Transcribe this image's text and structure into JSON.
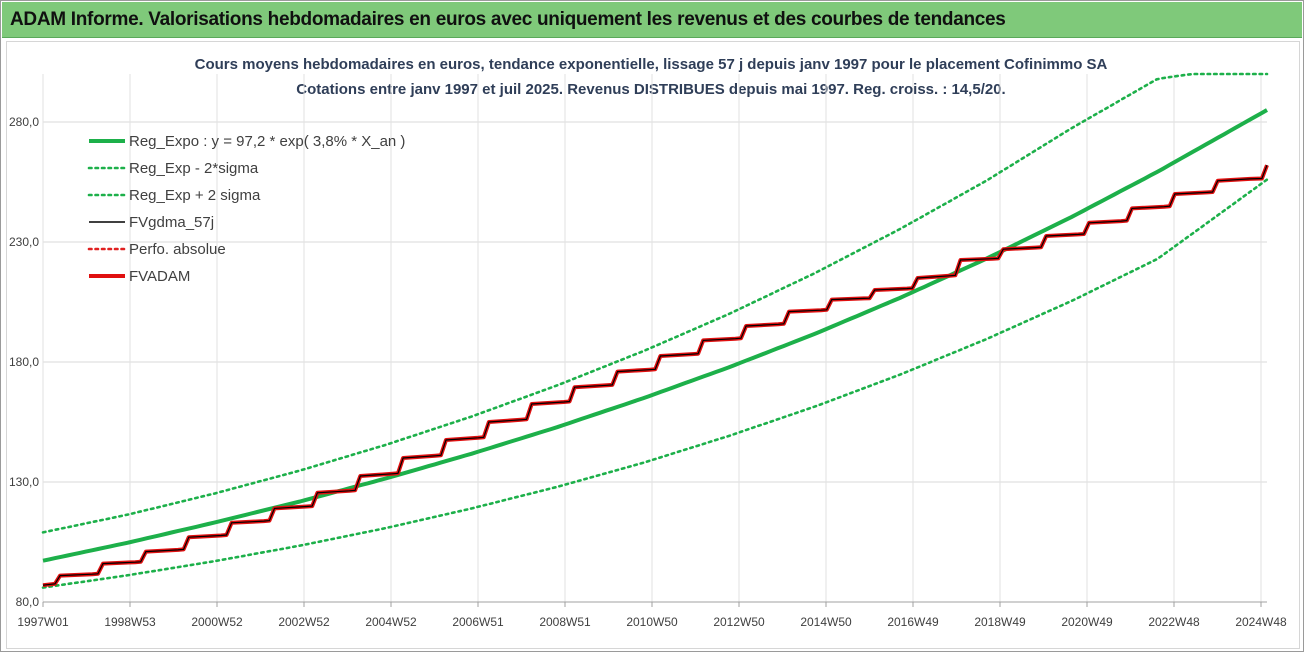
{
  "header": {
    "title": "ADAM Informe. Valorisations hebdomadaires en euros avec uniquement les revenus et des courbes de tendances"
  },
  "chart_data": {
    "type": "line",
    "title": "Cours moyens hebdomadaires en euros, tendance exponentielle, lissage 57 j depuis janv 1997  pour le placement Cofinimmo SA",
    "subtitle": "Cotations entre janv 1997 et juil 2025. Revenus DISTRIBUES depuis mai 1997. Reg. croiss. : 14,5/20.",
    "xlabel": "",
    "ylabel": "",
    "x_ticks": [
      "1997W01",
      "1998W53",
      "2000W52",
      "2002W52",
      "2004W52",
      "2006W51",
      "2008W51",
      "2010W50",
      "2012W50",
      "2014W50",
      "2016W49",
      "2018W49",
      "2020W49",
      "2022W48",
      "2024W48"
    ],
    "y_ticks": [
      "80,0",
      "130,0",
      "180,0",
      "230,0",
      "280,0"
    ],
    "ylim": [
      80,
      300
    ],
    "xlim": [
      1997.0,
      2025.55
    ],
    "grid": true,
    "legend_position": "top-left",
    "series": [
      {
        "name": "Reg_Expo : y = 97,2 * exp( 3,8% *  X_an )",
        "style": "solid-thick",
        "color": "#1db04a",
        "x": [
          1997,
          1999,
          2001,
          2003,
          2005,
          2007,
          2009,
          2011,
          2013,
          2015,
          2017,
          2019,
          2021,
          2023,
          2025.55
        ],
        "y": [
          97.2,
          104.8,
          113.1,
          121.9,
          131.5,
          141.8,
          152.9,
          164.9,
          177.8,
          191.7,
          206.8,
          223.0,
          240.5,
          259.3,
          285.0
        ]
      },
      {
        "name": "Reg_Exp - 2*sigma",
        "style": "dotted",
        "color": "#1db04a",
        "x": [
          1997,
          1999,
          2001,
          2003,
          2005,
          2007,
          2009,
          2011,
          2013,
          2015,
          2017,
          2019,
          2021,
          2023,
          2025.55
        ],
        "y": [
          86.0,
          91.2,
          97.0,
          103.5,
          110.8,
          119.0,
          128.0,
          138.0,
          149.2,
          161.4,
          174.8,
          189.5,
          205.5,
          223.0,
          256.0
        ]
      },
      {
        "name": "Reg_Exp + 2 sigma",
        "style": "dotted",
        "color": "#1db04a",
        "x": [
          1997,
          1999,
          2001,
          2003,
          2005,
          2007,
          2009,
          2011,
          2013,
          2015,
          2017,
          2019,
          2021,
          2023,
          2023.8,
          2025.55
        ],
        "y": [
          109.0,
          116.5,
          125.2,
          134.8,
          145.5,
          157.3,
          170.3,
          184.5,
          200.0,
          217.0,
          235.5,
          255.5,
          277.5,
          298.0,
          300.0,
          300.0
        ]
      },
      {
        "name": "FVgdma_57j",
        "style": "solid",
        "color": "#000000",
        "x": [
          1997,
          1997.4,
          1998.4,
          1999.4,
          2000.4,
          2001.4,
          2002.4,
          2003.4,
          2004.4,
          2005.4,
          2006.4,
          2007.4,
          2008.4,
          2009.4,
          2010.4,
          2011.4,
          2012.4,
          2013.4,
          2014.4,
          2015.4,
          2016.4,
          2017.4,
          2018.4,
          2019.4,
          2020.4,
          2021.4,
          2022.4,
          2023.4,
          2024.4,
          2025.55
        ],
        "y": [
          87.0,
          91.0,
          96.0,
          101.0,
          107.0,
          113.0,
          119.0,
          125.5,
          132.5,
          140.0,
          147.5,
          155.0,
          162.5,
          169.5,
          176.0,
          182.5,
          189.0,
          195.0,
          201.0,
          206.0,
          210.0,
          215.0,
          222.5,
          227.0,
          232.5,
          238.0,
          244.0,
          250.0,
          255.5,
          262.0
        ]
      },
      {
        "name": "Perfo. absolue",
        "style": "dotted",
        "color": "#e02020",
        "x": [
          1997,
          2025.55
        ],
        "y": [
          87.0,
          262.0
        ]
      },
      {
        "name": "FVADAM",
        "style": "step-thick",
        "color": "#e01010",
        "x": [
          1997,
          1997.4,
          1998.4,
          1999.4,
          2000.4,
          2001.4,
          2002.4,
          2003.4,
          2004.4,
          2005.4,
          2006.4,
          2007.4,
          2008.4,
          2009.4,
          2010.4,
          2011.4,
          2012.4,
          2013.4,
          2014.4,
          2015.4,
          2016.4,
          2017.4,
          2018.4,
          2019.4,
          2020.4,
          2021.4,
          2022.4,
          2023.4,
          2024.4,
          2025.55
        ],
        "y": [
          87.0,
          91.0,
          96.0,
          101.0,
          107.0,
          113.0,
          119.0,
          125.5,
          132.5,
          140.0,
          147.5,
          155.0,
          162.5,
          169.5,
          176.0,
          182.5,
          189.0,
          195.0,
          201.0,
          206.0,
          210.0,
          215.0,
          222.5,
          227.0,
          232.5,
          238.0,
          244.0,
          250.0,
          255.5,
          262.0
        ]
      }
    ]
  }
}
